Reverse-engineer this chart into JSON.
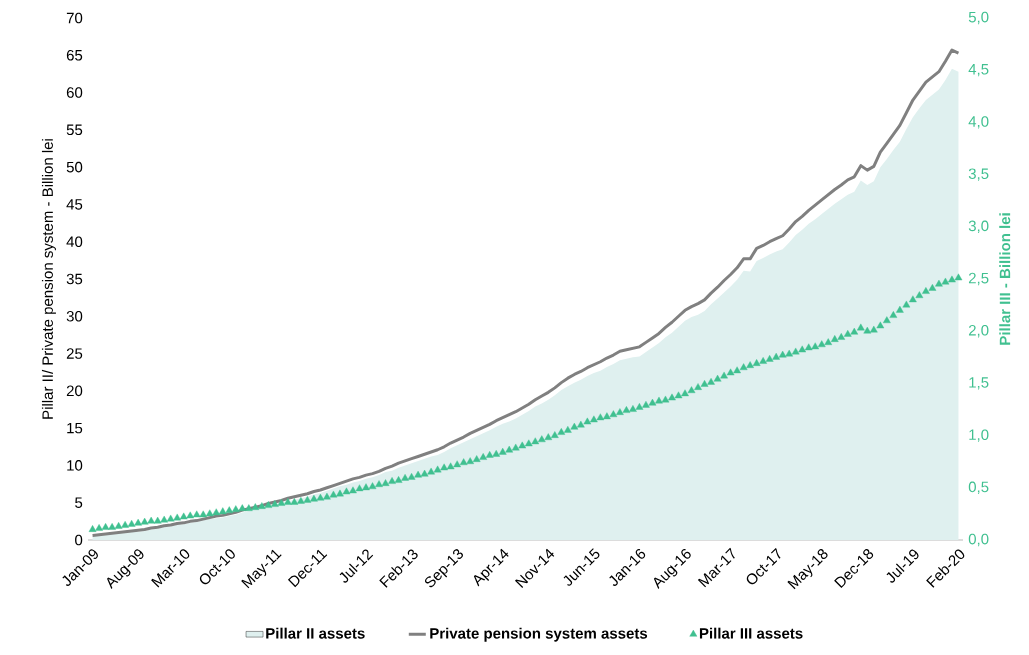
{
  "chart_data": {
    "type": "line",
    "ylabel": "Pillar II/ Private pension system - Billion lei",
    "y2label": "Pillar III - Billion lei",
    "categories": [
      "Jan-09",
      null,
      null,
      null,
      null,
      null,
      null,
      "Aug-09",
      null,
      null,
      null,
      null,
      null,
      null,
      "Mar-10",
      null,
      null,
      null,
      null,
      null,
      null,
      "Oct-10",
      null,
      null,
      null,
      null,
      null,
      null,
      "May-11",
      null,
      null,
      null,
      null,
      null,
      null,
      "Dec-11",
      null,
      null,
      null,
      null,
      null,
      null,
      "Jul-12",
      null,
      null,
      null,
      null,
      null,
      null,
      "Feb-13",
      null,
      null,
      null,
      null,
      null,
      null,
      "Sep-13",
      null,
      null,
      null,
      null,
      null,
      null,
      "Apr-14",
      null,
      null,
      null,
      null,
      null,
      null,
      "Nov-14",
      null,
      null,
      null,
      null,
      null,
      null,
      "Jun-15",
      null,
      null,
      null,
      null,
      null,
      null,
      "Jan-16",
      null,
      null,
      null,
      null,
      null,
      null,
      "Aug-16",
      null,
      null,
      null,
      null,
      null,
      null,
      "Mar-17",
      null,
      null,
      null,
      null,
      null,
      null,
      "Oct-17",
      null,
      null,
      null,
      null,
      null,
      null,
      "May-18",
      null,
      null,
      null,
      null,
      null,
      null,
      "Dec-18",
      null,
      null,
      null,
      null,
      null,
      null,
      "Jul-19",
      null,
      null,
      null,
      null,
      null,
      null,
      "Feb-20"
    ],
    "ylim": [
      0,
      70
    ],
    "yticks": [
      0,
      5,
      10,
      15,
      20,
      25,
      30,
      35,
      40,
      45,
      50,
      55,
      60,
      65,
      70
    ],
    "y2lim": [
      0,
      5
    ],
    "y2ticks": [
      {
        "value": 0,
        "label": "0,0"
      },
      {
        "value": 0.5,
        "label": "0,5"
      },
      {
        "value": 1,
        "label": "1,0"
      },
      {
        "value": 1.5,
        "label": "1,5"
      },
      {
        "value": 2,
        "label": "2,0"
      },
      {
        "value": 2.5,
        "label": "2,5"
      },
      {
        "value": 3,
        "label": "3,0"
      },
      {
        "value": 3.5,
        "label": "3,5"
      },
      {
        "value": 4,
        "label": "4,0"
      },
      {
        "value": 4.5,
        "label": "4,5"
      },
      {
        "value": 5,
        "label": "5,0"
      }
    ],
    "legend": "bottom",
    "grid": false,
    "series": [
      {
        "name": "Pillar II assets",
        "type": "area",
        "color": "#dff0ef",
        "values": [
          0.5,
          0.6,
          0.7,
          0.8,
          0.9,
          1.0,
          1.1,
          1.1,
          1.2,
          1.4,
          1.5,
          1.7,
          1.8,
          2.0,
          2.1,
          2.3,
          2.4,
          2.6,
          2.8,
          2.9,
          3.0,
          3.2,
          3.4,
          3.7,
          3.9,
          4.1,
          4.3,
          4.6,
          4.8,
          5.0,
          5.2,
          5.4,
          5.6,
          5.8,
          6.1,
          6.3,
          6.6,
          6.9,
          7.2,
          7.4,
          7.7,
          7.9,
          8.2,
          8.4,
          8.7,
          9.1,
          9.3,
          9.7,
          10.0,
          10.3,
          10.6,
          10.9,
          11.2,
          11.4,
          11.8,
          12.3,
          12.7,
          13.1,
          13.5,
          13.9,
          14.3,
          14.7,
          15.2,
          15.6,
          15.9,
          16.3,
          16.8,
          17.3,
          17.9,
          18.3,
          18.8,
          19.4,
          20.1,
          20.6,
          21.1,
          21.5,
          22.0,
          22.4,
          22.7,
          23.2,
          23.6,
          24.1,
          24.3,
          24.5,
          24.6,
          25.2,
          25.8,
          26.4,
          27.2,
          27.8,
          28.6,
          29.4,
          29.9,
          30.2,
          30.7,
          31.6,
          32.4,
          33.2,
          34.0,
          34.9,
          36.1,
          36.0,
          37.4,
          37.8,
          38.3,
          38.7,
          39.0,
          39.9,
          40.9,
          41.6,
          42.4,
          43.0,
          43.7,
          44.4,
          45.1,
          45.7,
          46.3,
          46.7,
          48.2,
          47.6,
          48.1,
          50.0,
          51.1,
          52.3,
          53.4,
          55.1,
          56.7,
          57.9,
          59.0,
          59.7,
          60.4,
          61.7,
          63.2,
          62.8
        ]
      },
      {
        "name": "Private pension system assets",
        "color": "#808080",
        "marker": "none",
        "line_style": "solid",
        "values": [
          0.6,
          0.7,
          0.8,
          0.9,
          1.0,
          1.1,
          1.2,
          1.3,
          1.4,
          1.6,
          1.7,
          1.9,
          2.0,
          2.2,
          2.3,
          2.5,
          2.6,
          2.8,
          3.0,
          3.2,
          3.3,
          3.5,
          3.7,
          4.0,
          4.2,
          4.4,
          4.6,
          4.9,
          5.1,
          5.3,
          5.6,
          5.8,
          6.0,
          6.2,
          6.5,
          6.7,
          7.0,
          7.3,
          7.6,
          7.9,
          8.2,
          8.4,
          8.7,
          8.9,
          9.2,
          9.6,
          9.9,
          10.3,
          10.6,
          10.9,
          11.2,
          11.5,
          11.8,
          12.1,
          12.5,
          13.0,
          13.4,
          13.8,
          14.3,
          14.7,
          15.1,
          15.5,
          16.0,
          16.4,
          16.8,
          17.2,
          17.7,
          18.2,
          18.8,
          19.3,
          19.8,
          20.4,
          21.1,
          21.7,
          22.2,
          22.6,
          23.1,
          23.5,
          23.9,
          24.4,
          24.8,
          25.3,
          25.5,
          25.7,
          25.9,
          26.5,
          27.1,
          27.7,
          28.5,
          29.2,
          30.0,
          30.8,
          31.3,
          31.7,
          32.2,
          33.1,
          33.9,
          34.8,
          35.6,
          36.5,
          37.7,
          37.7,
          39.1,
          39.5,
          40.0,
          40.4,
          40.8,
          41.7,
          42.7,
          43.4,
          44.2,
          44.9,
          45.6,
          46.3,
          47.0,
          47.6,
          48.3,
          48.7,
          50.2,
          49.6,
          50.1,
          52.0,
          53.2,
          54.4,
          55.6,
          57.3,
          59.0,
          60.2,
          61.4,
          62.1,
          62.8,
          64.2,
          65.7,
          65.3
        ]
      },
      {
        "name": "Pillar III assets",
        "type": "scatter",
        "axis": "y2",
        "color": "#40c090",
        "marker": "triangle",
        "values": [
          0.1,
          0.11,
          0.12,
          0.12,
          0.13,
          0.14,
          0.15,
          0.16,
          0.17,
          0.18,
          0.18,
          0.19,
          0.2,
          0.21,
          0.22,
          0.23,
          0.24,
          0.24,
          0.25,
          0.26,
          0.27,
          0.28,
          0.29,
          0.3,
          0.3,
          0.31,
          0.32,
          0.33,
          0.34,
          0.35,
          0.36,
          0.36,
          0.37,
          0.38,
          0.39,
          0.4,
          0.41,
          0.43,
          0.44,
          0.46,
          0.47,
          0.49,
          0.5,
          0.51,
          0.53,
          0.54,
          0.56,
          0.57,
          0.59,
          0.6,
          0.62,
          0.63,
          0.65,
          0.67,
          0.69,
          0.7,
          0.72,
          0.74,
          0.75,
          0.77,
          0.79,
          0.81,
          0.82,
          0.84,
          0.86,
          0.88,
          0.9,
          0.92,
          0.94,
          0.96,
          0.98,
          1.0,
          1.03,
          1.05,
          1.08,
          1.1,
          1.13,
          1.15,
          1.17,
          1.18,
          1.2,
          1.22,
          1.24,
          1.25,
          1.27,
          1.29,
          1.31,
          1.33,
          1.34,
          1.36,
          1.38,
          1.4,
          1.43,
          1.46,
          1.49,
          1.51,
          1.54,
          1.57,
          1.6,
          1.62,
          1.65,
          1.67,
          1.69,
          1.71,
          1.73,
          1.75,
          1.77,
          1.78,
          1.8,
          1.82,
          1.84,
          1.85,
          1.87,
          1.89,
          1.92,
          1.94,
          1.97,
          1.99,
          2.03,
          2.0,
          2.01,
          2.05,
          2.1,
          2.15,
          2.2,
          2.25,
          2.3,
          2.34,
          2.38,
          2.41,
          2.45,
          2.47,
          2.49,
          2.51
        ]
      }
    ]
  }
}
